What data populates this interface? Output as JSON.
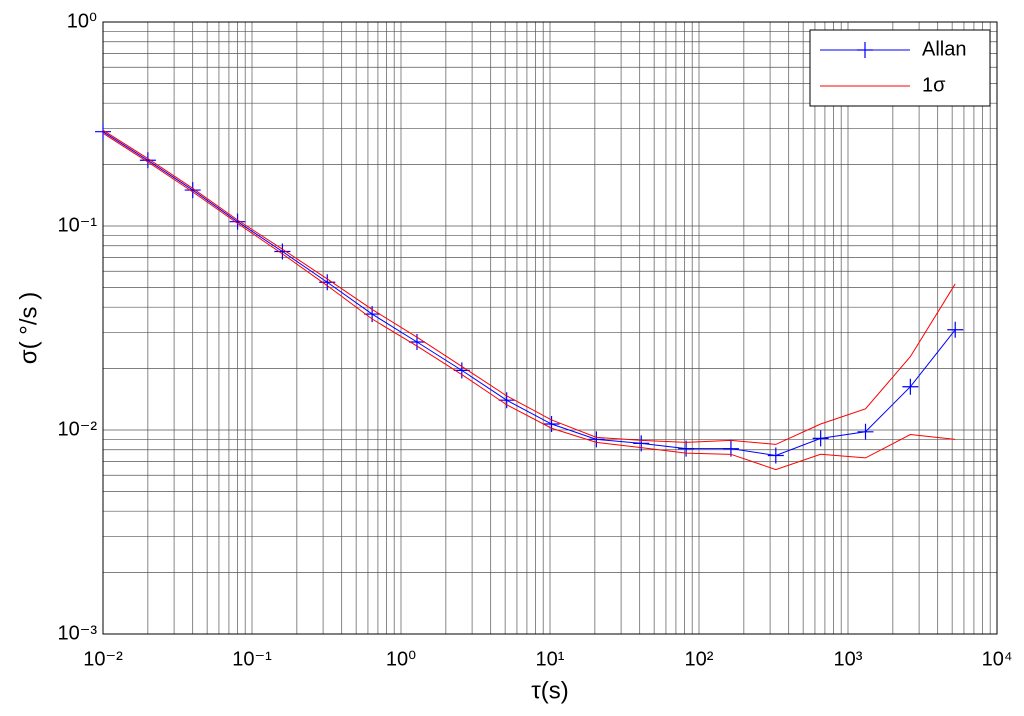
{
  "chart_data": {
    "type": "line",
    "xlabel": "τ(s)",
    "ylabel": "σ( °/s )",
    "xscale": "log",
    "yscale": "log",
    "grid": true,
    "minor_grid": true,
    "legend": "upper right",
    "xlim": [
      0.01,
      10000
    ],
    "xticks": [
      {
        "value": 0.01,
        "label": "10⁻²"
      },
      {
        "value": 0.1,
        "label": "10⁻¹"
      },
      {
        "value": 1,
        "label": "10⁰"
      },
      {
        "value": 10,
        "label": "10¹"
      },
      {
        "value": 100,
        "label": "10²"
      },
      {
        "value": 1000,
        "label": "10³"
      },
      {
        "value": 10000,
        "label": "10⁴"
      }
    ],
    "ylim": [
      0.001,
      1
    ],
    "yticks": [
      {
        "value": 0.001,
        "label": "10⁻³"
      },
      {
        "value": 0.01,
        "label": "10⁻²"
      },
      {
        "value": 0.1,
        "label": "10⁻¹"
      },
      {
        "value": 1,
        "label": "10⁰"
      }
    ],
    "x": [
      0.01,
      0.02,
      0.04,
      0.08,
      0.16,
      0.32,
      0.64,
      1.28,
      2.56,
      5.12,
      10.24,
      20.48,
      40.96,
      81.92,
      163.84,
      327.68,
      655.36,
      1310.72,
      2621.44,
      5242.88
    ],
    "series": [
      {
        "name": "Allan",
        "color": "#0000ff",
        "marker": "+",
        "values": [
          0.29,
          0.21,
          0.15,
          0.105,
          0.075,
          0.053,
          0.037,
          0.027,
          0.0196,
          0.014,
          0.0107,
          0.009,
          0.0086,
          0.0081,
          0.0081,
          0.0075,
          0.0091,
          0.0098,
          0.0163,
          0.031
        ]
      },
      {
        "name": "1σ",
        "color": "#ff0000",
        "values": [
          0.295,
          0.214,
          0.153,
          0.107,
          0.077,
          0.055,
          0.039,
          0.0285,
          0.0205,
          0.0147,
          0.0112,
          0.0092,
          0.0089,
          0.0087,
          0.0089,
          0.0085,
          0.0107,
          0.0127,
          0.0229,
          0.052
        ],
        "values_lower": [
          0.285,
          0.206,
          0.147,
          0.103,
          0.073,
          0.051,
          0.035,
          0.0258,
          0.0187,
          0.0133,
          0.0102,
          0.0087,
          0.0082,
          0.0077,
          0.0076,
          0.0064,
          0.0076,
          0.0073,
          0.0095,
          0.009
        ]
      }
    ]
  }
}
